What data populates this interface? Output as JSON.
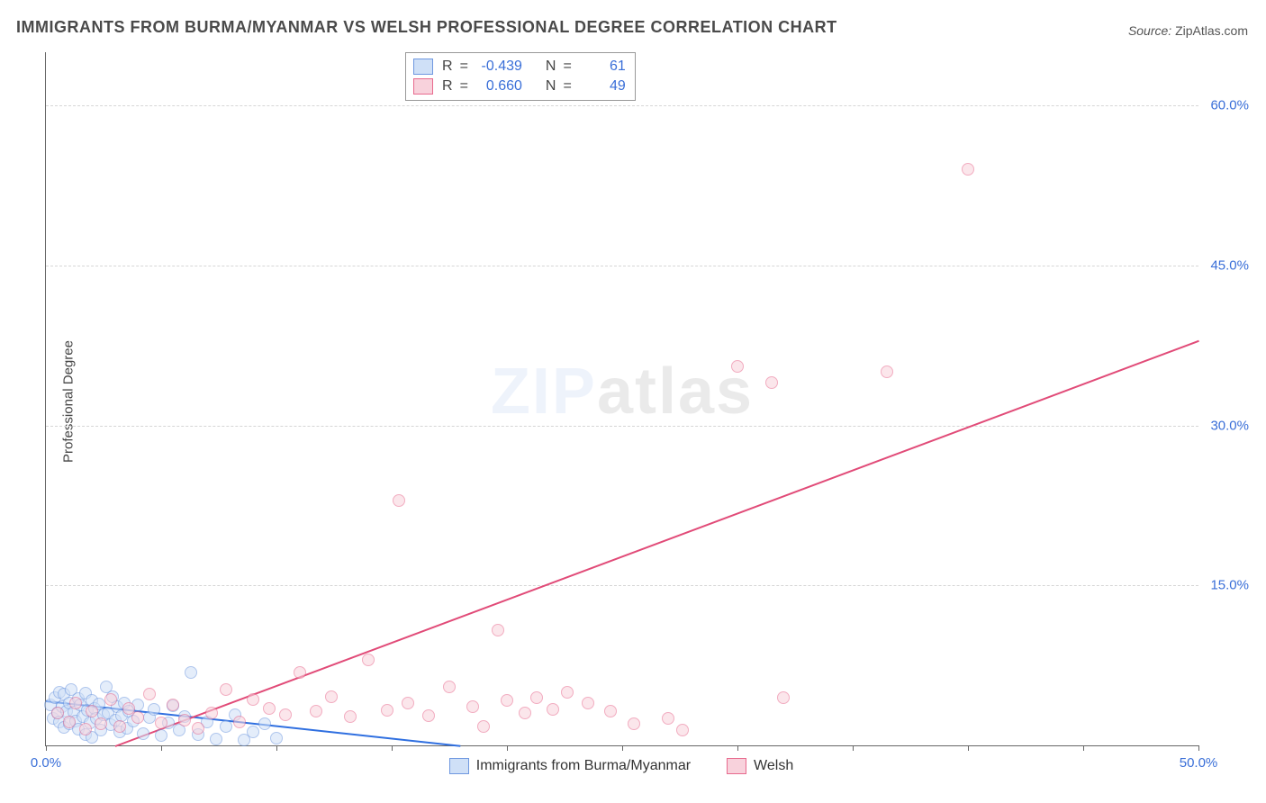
{
  "title": "IMMIGRANTS FROM BURMA/MYANMAR VS WELSH PROFESSIONAL DEGREE CORRELATION CHART",
  "source_label": "Source:",
  "source_value": "ZipAtlas.com",
  "ylabel": "Professional Degree",
  "watermark_a": "ZIP",
  "watermark_b": "atlas",
  "chart": {
    "type": "scatter",
    "xlim": [
      0,
      50
    ],
    "ylim": [
      0,
      65
    ],
    "y_ticks": [
      15,
      30,
      45,
      60
    ],
    "y_tick_labels": [
      "15.0%",
      "30.0%",
      "45.0%",
      "60.0%"
    ],
    "x_ticks": [
      0,
      5,
      10,
      15,
      20,
      25,
      30,
      35,
      40,
      45,
      50
    ],
    "x_tick_labels": {
      "0": "0.0%",
      "50": "50.0%"
    },
    "grid_color": "#d6d6d6",
    "axis_color": "#666666",
    "background_color": "#ffffff",
    "marker_radius": 7
  },
  "series": [
    {
      "id": "burma",
      "label": "Immigrants from Burma/Myanmar",
      "fill": "#cfe0f7",
      "stroke": "#6f98e0",
      "fill_opacity": 0.55,
      "R": "-0.439",
      "N": "61",
      "trend": {
        "x1": 0,
        "y1": 4.2,
        "x2": 18,
        "y2": 0,
        "color": "#2f6fe0",
        "width": 2
      },
      "points": [
        [
          0.2,
          3.8
        ],
        [
          0.3,
          2.5
        ],
        [
          0.4,
          4.5
        ],
        [
          0.5,
          3.0
        ],
        [
          0.6,
          5.0
        ],
        [
          0.6,
          2.2
        ],
        [
          0.7,
          3.6
        ],
        [
          0.8,
          4.8
        ],
        [
          0.8,
          1.7
        ],
        [
          0.9,
          3.2
        ],
        [
          1.0,
          4.0
        ],
        [
          1.0,
          2.0
        ],
        [
          1.1,
          5.2
        ],
        [
          1.2,
          3.1
        ],
        [
          1.3,
          2.3
        ],
        [
          1.4,
          4.4
        ],
        [
          1.4,
          1.5
        ],
        [
          1.5,
          3.8
        ],
        [
          1.6,
          2.7
        ],
        [
          1.7,
          4.9
        ],
        [
          1.7,
          1.0
        ],
        [
          1.8,
          3.3
        ],
        [
          1.9,
          2.1
        ],
        [
          2.0,
          4.2
        ],
        [
          2.0,
          0.8
        ],
        [
          2.1,
          3.5
        ],
        [
          2.2,
          2.5
        ],
        [
          2.3,
          3.9
        ],
        [
          2.4,
          1.4
        ],
        [
          2.5,
          2.9
        ],
        [
          2.6,
          5.5
        ],
        [
          2.7,
          3.0
        ],
        [
          2.8,
          1.9
        ],
        [
          2.9,
          4.6
        ],
        [
          3.0,
          2.4
        ],
        [
          3.1,
          3.6
        ],
        [
          3.2,
          1.3
        ],
        [
          3.3,
          2.8
        ],
        [
          3.4,
          4.0
        ],
        [
          3.5,
          1.6
        ],
        [
          3.6,
          3.2
        ],
        [
          3.8,
          2.3
        ],
        [
          4.0,
          3.8
        ],
        [
          4.2,
          1.1
        ],
        [
          4.5,
          2.6
        ],
        [
          4.7,
          3.4
        ],
        [
          5.0,
          0.9
        ],
        [
          5.3,
          2.1
        ],
        [
          5.5,
          3.7
        ],
        [
          5.8,
          1.4
        ],
        [
          6.0,
          2.7
        ],
        [
          6.3,
          6.8
        ],
        [
          6.6,
          1.0
        ],
        [
          7.0,
          2.2
        ],
        [
          7.4,
          0.6
        ],
        [
          7.8,
          1.8
        ],
        [
          8.2,
          2.9
        ],
        [
          8.6,
          0.5
        ],
        [
          9.0,
          1.3
        ],
        [
          9.5,
          2.0
        ],
        [
          10.0,
          0.7
        ]
      ]
    },
    {
      "id": "welsh",
      "label": "Welsh",
      "fill": "#f8d2dc",
      "stroke": "#e86a8e",
      "fill_opacity": 0.55,
      "R": "0.660",
      "N": "49",
      "trend": {
        "x1": 3,
        "y1": 0,
        "x2": 50,
        "y2": 38,
        "color": "#e14b78",
        "width": 2
      },
      "points": [
        [
          0.5,
          3.0
        ],
        [
          1.0,
          2.2
        ],
        [
          1.3,
          4.0
        ],
        [
          1.7,
          1.5
        ],
        [
          2.0,
          3.2
        ],
        [
          2.4,
          2.0
        ],
        [
          2.8,
          4.3
        ],
        [
          3.2,
          1.8
        ],
        [
          3.6,
          3.5
        ],
        [
          4.0,
          2.6
        ],
        [
          4.5,
          4.8
        ],
        [
          5.0,
          2.1
        ],
        [
          5.5,
          3.8
        ],
        [
          6.0,
          2.4
        ],
        [
          6.6,
          1.6
        ],
        [
          7.2,
          3.0
        ],
        [
          7.8,
          5.2
        ],
        [
          8.4,
          2.2
        ],
        [
          9.0,
          4.3
        ],
        [
          9.7,
          3.5
        ],
        [
          10.4,
          2.9
        ],
        [
          11.0,
          6.8
        ],
        [
          11.7,
          3.2
        ],
        [
          12.4,
          4.6
        ],
        [
          13.2,
          2.7
        ],
        [
          14.0,
          8.0
        ],
        [
          14.8,
          3.3
        ],
        [
          15.3,
          23.0
        ],
        [
          15.7,
          4.0
        ],
        [
          16.6,
          2.8
        ],
        [
          17.5,
          5.5
        ],
        [
          18.5,
          3.6
        ],
        [
          19.0,
          1.8
        ],
        [
          19.6,
          10.8
        ],
        [
          20.0,
          4.2
        ],
        [
          20.8,
          3.0
        ],
        [
          21.3,
          4.5
        ],
        [
          22.0,
          3.4
        ],
        [
          22.6,
          5.0
        ],
        [
          23.5,
          4.0
        ],
        [
          24.5,
          3.2
        ],
        [
          25.5,
          2.0
        ],
        [
          27.0,
          2.5
        ],
        [
          30.0,
          35.5
        ],
        [
          31.5,
          34.0
        ],
        [
          32.0,
          4.5
        ],
        [
          36.5,
          35.0
        ],
        [
          40.0,
          54.0
        ],
        [
          27.6,
          1.4
        ]
      ]
    }
  ],
  "stats_legend_labels": {
    "R": "R",
    "N": "N",
    "eq": "="
  },
  "bottom_legend": {
    "items": [
      "Immigrants from Burma/Myanmar",
      "Welsh"
    ]
  }
}
